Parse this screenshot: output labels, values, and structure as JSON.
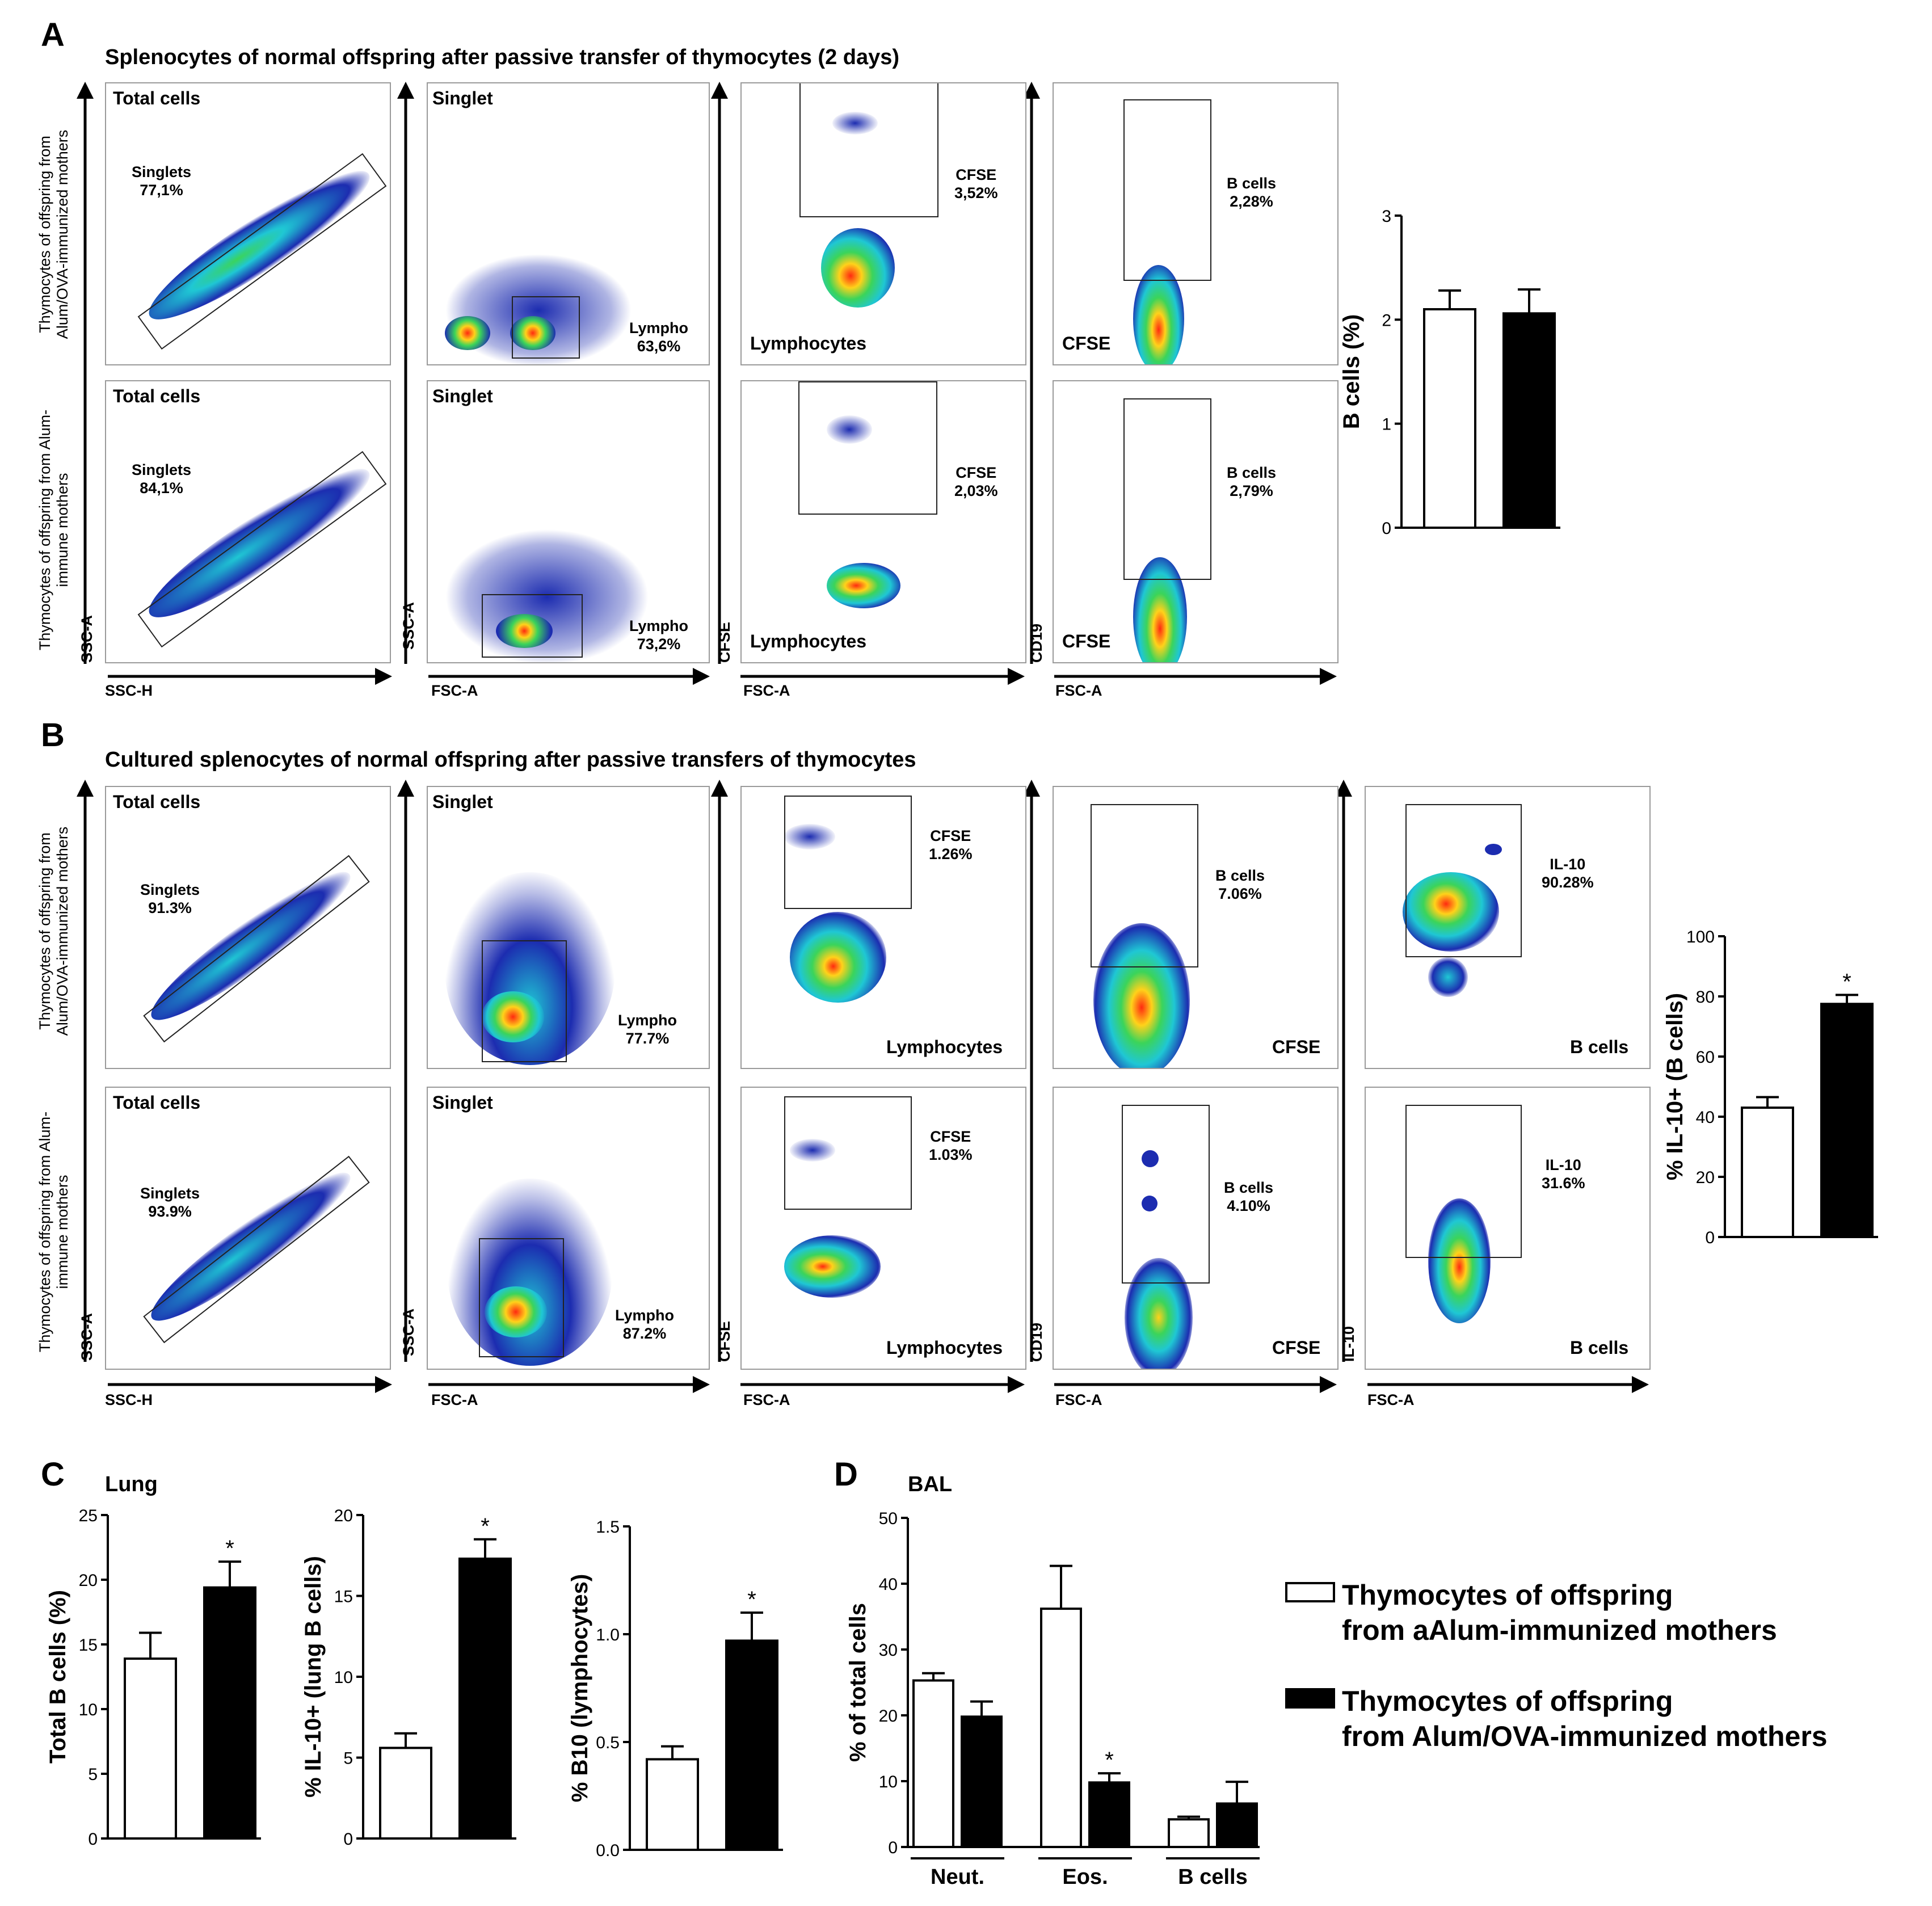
{
  "colors": {
    "bar_open": "#ffffff",
    "bar_filled": "#000000",
    "density_low": "#1c2cb0",
    "density_mid": "#1fc7d4",
    "density_high": "#ff2a10"
  },
  "panel_a": {
    "letter": "A",
    "title": "Splenocytes of normal offspring after passive transfer of thymocytes (2 days)",
    "row_labels": [
      "Thymocytes of offspring from Alum/OVA-immunized mothers",
      "Thymocytes of offspring from Alum-immune mothers"
    ],
    "rows": [
      {
        "total_title": "Total cells",
        "singlets_label": "Singlets",
        "singlets_value": "77,1%",
        "singlet_title": "Singlet",
        "lympho_label": "Lympho",
        "lympho_value": "63,6%",
        "cfse_label": "CFSE",
        "cfse_value": "3,52%",
        "lymphocytes_title": "Lymphocytes",
        "bcells_label": "B cells",
        "bcells_value": "2,28%",
        "cfse_title": "CFSE"
      },
      {
        "total_title": "Total cells",
        "singlets_label": "Singlets",
        "singlets_value": "84,1%",
        "singlet_title": "Singlet",
        "lympho_label": "Lympho",
        "lympho_value": "73,2%",
        "cfse_label": "CFSE",
        "cfse_value": "2,03%",
        "lymphocytes_title": "Lymphocytes",
        "bcells_label": "B cells",
        "bcells_value": "2,79%",
        "cfse_title": "CFSE"
      }
    ],
    "axes": {
      "ssc_h": "SSC-H",
      "ssc_a": "SSC-A",
      "fsc_a": "FSC-A",
      "cfse": "CFSE",
      "cd19": "CD19"
    }
  },
  "panel_b": {
    "letter": "B",
    "title": "Cultured splenocytes of normal offspring after passive transfers of thymocytes",
    "row_labels": [
      "Thymocytes of offspring from Alum/OVA-immunized mothers",
      "Thymocytes of offspring from Alum-immune mothers"
    ],
    "rows": [
      {
        "total_title": "Total cells",
        "singlets_label": "Singlets",
        "singlets_value": "91.3%",
        "singlet_title": "Singlet",
        "lympho_label": "Lympho",
        "lympho_value": "77.7%",
        "cfse_label": "CFSE",
        "cfse_value": "1.26%",
        "lymphocytes_title": "Lymphocytes",
        "bcells_label": "B cells",
        "bcells_value": "7.06%",
        "cfse_title": "CFSE",
        "il10_label": "IL-10",
        "il10_value": "90.28%",
        "bcells_title": "B cells"
      },
      {
        "total_title": "Total cells",
        "singlets_label": "Singlets",
        "singlets_value": "93.9%",
        "singlet_title": "Singlet",
        "lympho_label": "Lympho",
        "lympho_value": "87.2%",
        "cfse_label": "CFSE",
        "cfse_value": "1.03%",
        "lymphocytes_title": "Lymphocytes",
        "bcells_label": "B cells",
        "bcells_value": "4.10%",
        "cfse_title": "CFSE",
        "il10_label": "IL-10",
        "il10_value": "31.6%",
        "bcells_title": "B cells"
      }
    ],
    "axes": {
      "ssc_h": "SSC-H",
      "ssc_a": "SSC-A",
      "fsc_a": "FSC-A",
      "cfse": "CFSE",
      "cd19": "CD19",
      "il10": "IL-10"
    }
  },
  "panel_c": {
    "letter": "C",
    "title": "Lung"
  },
  "panel_d": {
    "letter": "D",
    "title": "BAL"
  },
  "legend": {
    "open": [
      "Thymocytes of offspring",
      "from aAlum-immunized mothers"
    ],
    "filled": [
      "Thymocytes of offspring",
      "from Alum/OVA-immunized mothers"
    ]
  },
  "chart_data": [
    {
      "id": "a_bcells",
      "type": "bar",
      "title": "",
      "ylabel": "B cells (%)",
      "ylim": [
        0,
        3
      ],
      "yticks": [
        0,
        1,
        2,
        3
      ],
      "ytick_labels": [
        "0",
        "1",
        "2",
        "3"
      ],
      "categories": [
        "Alum",
        "Alum/OVA"
      ],
      "values": [
        2.1,
        2.06
      ],
      "errors": [
        0.18,
        0.23
      ],
      "fills": [
        "open",
        "filled"
      ],
      "significance": [
        "",
        ""
      ]
    },
    {
      "id": "b_il10",
      "type": "bar",
      "title": "",
      "ylabel": "% IL-10+ (B cells)",
      "ylim": [
        0,
        100
      ],
      "yticks": [
        0,
        20,
        40,
        60,
        80,
        100
      ],
      "ytick_labels": [
        "0",
        "20",
        "40",
        "60",
        "80",
        "100"
      ],
      "categories": [
        "Alum",
        "Alum/OVA"
      ],
      "values": [
        43,
        77.5
      ],
      "errors": [
        3.5,
        3
      ],
      "fills": [
        "open",
        "filled"
      ],
      "significance": [
        "",
        "*"
      ]
    },
    {
      "id": "c_total_b",
      "type": "bar",
      "title": "",
      "ylabel": "Total B cells (%)",
      "ylim": [
        0,
        25
      ],
      "yticks": [
        0,
        5,
        10,
        15,
        20,
        25
      ],
      "ytick_labels": [
        "0",
        "5",
        "10",
        "15",
        "20",
        "25"
      ],
      "categories": [
        "Alum",
        "Alum/OVA"
      ],
      "values": [
        13.9,
        19.4
      ],
      "errors": [
        2,
        2
      ],
      "fills": [
        "open",
        "filled"
      ],
      "significance": [
        "",
        "*"
      ]
    },
    {
      "id": "c_il10",
      "type": "bar",
      "title": "",
      "ylabel": "% IL-10+ (lung B cells)",
      "ylim": [
        0,
        20
      ],
      "yticks": [
        0,
        5,
        10,
        15,
        20
      ],
      "ytick_labels": [
        "0",
        "5",
        "10",
        "15",
        "20"
      ],
      "categories": [
        "Alum",
        "Alum/OVA"
      ],
      "values": [
        5.6,
        17.3
      ],
      "errors": [
        0.9,
        1.2
      ],
      "fills": [
        "open",
        "filled"
      ],
      "significance": [
        "",
        "*"
      ]
    },
    {
      "id": "c_b10",
      "type": "bar",
      "title": "",
      "ylabel": "% B10 (lymphocytes)",
      "ylim": [
        0,
        1.5
      ],
      "yticks": [
        0,
        0.5,
        1,
        1.5
      ],
      "ytick_labels": [
        "0.0",
        "0.5",
        "1.0",
        "1.5"
      ],
      "categories": [
        "Alum",
        "Alum/OVA"
      ],
      "values": [
        0.42,
        0.97
      ],
      "errors": [
        0.06,
        0.13
      ],
      "fills": [
        "open",
        "filled"
      ],
      "significance": [
        "",
        "*"
      ]
    },
    {
      "id": "d_bal",
      "type": "bar",
      "title": "",
      "ylabel": "% of total cells",
      "ylim": [
        0,
        50
      ],
      "yticks": [
        0,
        10,
        20,
        30,
        40,
        50
      ],
      "ytick_labels": [
        "0",
        "10",
        "20",
        "30",
        "40",
        "50"
      ],
      "groups": [
        "Neut.",
        "Eos.",
        "B cells"
      ],
      "series": [
        {
          "name": "Alum",
          "fill": "open",
          "values": [
            25.3,
            36.2,
            4.2
          ],
          "errors": [
            1.1,
            6.5,
            0.4
          ]
        },
        {
          "name": "Alum/OVA",
          "fill": "filled",
          "values": [
            19.8,
            9.8,
            6.6
          ],
          "errors": [
            2.3,
            1.4,
            3.3
          ]
        }
      ],
      "significance": [
        [
          "",
          ""
        ],
        [
          "",
          "*"
        ],
        [
          "",
          ""
        ]
      ]
    }
  ]
}
